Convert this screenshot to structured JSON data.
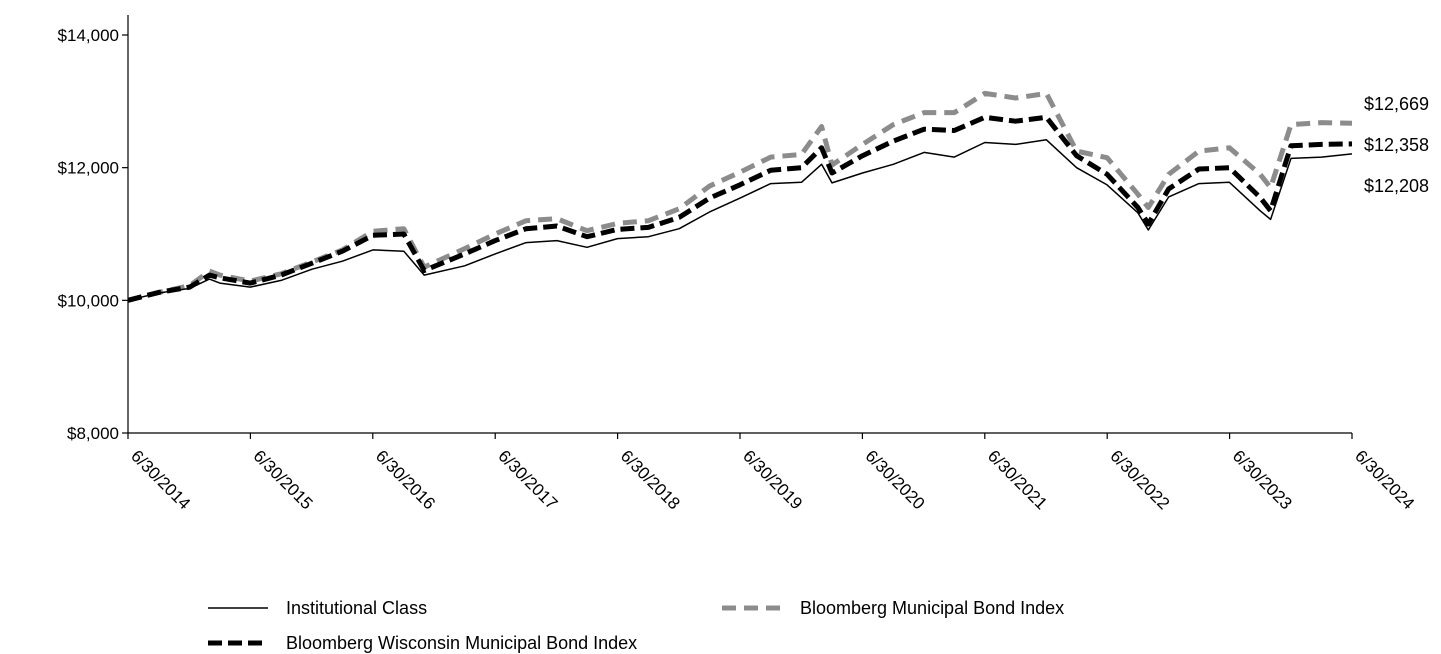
{
  "chart_data": {
    "type": "line",
    "x_ticks": [
      "6/30/2014",
      "6/30/2015",
      "6/30/2016",
      "6/30/2017",
      "6/30/2018",
      "6/30/2019",
      "6/30/2020",
      "6/30/2021",
      "6/30/2022",
      "6/30/2023",
      "6/30/2024"
    ],
    "y_ticks": [
      "$8,000",
      "$10,000",
      "$12,000",
      "$14,000"
    ],
    "ylim": [
      8000,
      14000
    ],
    "x_start": "2014-06-30",
    "x_end": "2024-06-30",
    "series": [
      {
        "name": "Institutional Class",
        "color": "#000000",
        "style": "solid",
        "end_label": "$12,208",
        "points": [
          [
            "2014-06-30",
            10000
          ],
          [
            "2014-09-30",
            10110
          ],
          [
            "2014-12-31",
            10180
          ],
          [
            "2015-02-28",
            10320
          ],
          [
            "2015-03-31",
            10260
          ],
          [
            "2015-06-30",
            10200
          ],
          [
            "2015-09-30",
            10300
          ],
          [
            "2015-12-31",
            10470
          ],
          [
            "2016-03-31",
            10590
          ],
          [
            "2016-06-30",
            10760
          ],
          [
            "2016-09-30",
            10740
          ],
          [
            "2016-11-30",
            10380
          ],
          [
            "2017-03-31",
            10520
          ],
          [
            "2017-06-30",
            10700
          ],
          [
            "2017-09-30",
            10870
          ],
          [
            "2017-12-31",
            10900
          ],
          [
            "2018-03-31",
            10800
          ],
          [
            "2018-06-30",
            10930
          ],
          [
            "2018-09-30",
            10960
          ],
          [
            "2018-12-31",
            11080
          ],
          [
            "2019-03-31",
            11330
          ],
          [
            "2019-06-30",
            11540
          ],
          [
            "2019-09-30",
            11760
          ],
          [
            "2019-12-31",
            11780
          ],
          [
            "2020-02-29",
            12050
          ],
          [
            "2020-03-31",
            11770
          ],
          [
            "2020-06-30",
            11920
          ],
          [
            "2020-09-30",
            12050
          ],
          [
            "2020-12-31",
            12230
          ],
          [
            "2021-03-31",
            12160
          ],
          [
            "2021-06-30",
            12380
          ],
          [
            "2021-09-30",
            12350
          ],
          [
            "2021-12-31",
            12420
          ],
          [
            "2022-03-31",
            12000
          ],
          [
            "2022-06-30",
            11740
          ],
          [
            "2022-09-30",
            11320
          ],
          [
            "2022-10-31",
            11060
          ],
          [
            "2022-12-31",
            11560
          ],
          [
            "2023-03-31",
            11760
          ],
          [
            "2023-06-30",
            11780
          ],
          [
            "2023-09-30",
            11350
          ],
          [
            "2023-10-31",
            11220
          ],
          [
            "2023-12-31",
            12140
          ],
          [
            "2024-03-31",
            12160
          ],
          [
            "2024-06-30",
            12208
          ]
        ]
      },
      {
        "name": "Bloomberg Municipal Bond Index",
        "color": "#8c8c8c",
        "style": "dashed",
        "end_label": "$12,669",
        "points": [
          [
            "2014-06-30",
            10000
          ],
          [
            "2014-09-30",
            10120
          ],
          [
            "2014-12-31",
            10220
          ],
          [
            "2015-02-28",
            10440
          ],
          [
            "2015-03-31",
            10380
          ],
          [
            "2015-06-30",
            10290
          ],
          [
            "2015-09-30",
            10400
          ],
          [
            "2015-12-31",
            10580
          ],
          [
            "2016-03-31",
            10760
          ],
          [
            "2016-06-30",
            11040
          ],
          [
            "2016-09-30",
            11080
          ],
          [
            "2016-11-30",
            10500
          ],
          [
            "2017-03-31",
            10780
          ],
          [
            "2017-06-30",
            11000
          ],
          [
            "2017-09-30",
            11200
          ],
          [
            "2017-12-31",
            11230
          ],
          [
            "2018-03-31",
            11050
          ],
          [
            "2018-06-30",
            11160
          ],
          [
            "2018-09-30",
            11200
          ],
          [
            "2018-12-31",
            11380
          ],
          [
            "2019-03-31",
            11720
          ],
          [
            "2019-06-30",
            11930
          ],
          [
            "2019-09-30",
            12160
          ],
          [
            "2019-12-31",
            12200
          ],
          [
            "2020-02-29",
            12620
          ],
          [
            "2020-03-31",
            12040
          ],
          [
            "2020-06-30",
            12350
          ],
          [
            "2020-09-30",
            12650
          ],
          [
            "2020-12-31",
            12830
          ],
          [
            "2021-03-31",
            12830
          ],
          [
            "2021-06-30",
            13120
          ],
          [
            "2021-09-30",
            13050
          ],
          [
            "2021-12-31",
            13120
          ],
          [
            "2022-03-31",
            12250
          ],
          [
            "2022-06-30",
            12150
          ],
          [
            "2022-09-30",
            11600
          ],
          [
            "2022-10-31",
            11400
          ],
          [
            "2022-12-31",
            11900
          ],
          [
            "2023-03-31",
            12250
          ],
          [
            "2023-06-30",
            12300
          ],
          [
            "2023-09-30",
            11900
          ],
          [
            "2023-10-31",
            11700
          ],
          [
            "2023-12-31",
            12650
          ],
          [
            "2024-03-31",
            12680
          ],
          [
            "2024-06-30",
            12669
          ]
        ]
      },
      {
        "name": "Bloomberg Wisconsin Municipal Bond Index",
        "color": "#000000",
        "style": "dashed-bold",
        "end_label": "$12,358",
        "points": [
          [
            "2014-06-30",
            10000
          ],
          [
            "2014-09-30",
            10120
          ],
          [
            "2014-12-31",
            10200
          ],
          [
            "2015-02-28",
            10380
          ],
          [
            "2015-03-31",
            10340
          ],
          [
            "2015-06-30",
            10260
          ],
          [
            "2015-09-30",
            10380
          ],
          [
            "2015-12-31",
            10560
          ],
          [
            "2016-03-31",
            10740
          ],
          [
            "2016-06-30",
            10980
          ],
          [
            "2016-09-30",
            11000
          ],
          [
            "2016-11-30",
            10450
          ],
          [
            "2017-03-31",
            10700
          ],
          [
            "2017-06-30",
            10900
          ],
          [
            "2017-09-30",
            11080
          ],
          [
            "2017-12-31",
            11120
          ],
          [
            "2018-03-31",
            10960
          ],
          [
            "2018-06-30",
            11070
          ],
          [
            "2018-09-30",
            11100
          ],
          [
            "2018-12-31",
            11250
          ],
          [
            "2019-03-31",
            11540
          ],
          [
            "2019-06-30",
            11740
          ],
          [
            "2019-09-30",
            11960
          ],
          [
            "2019-12-31",
            12000
          ],
          [
            "2020-02-29",
            12300
          ],
          [
            "2020-03-31",
            11920
          ],
          [
            "2020-06-30",
            12180
          ],
          [
            "2020-09-30",
            12400
          ],
          [
            "2020-12-31",
            12580
          ],
          [
            "2021-03-31",
            12560
          ],
          [
            "2021-06-30",
            12760
          ],
          [
            "2021-09-30",
            12700
          ],
          [
            "2021-12-31",
            12760
          ],
          [
            "2022-03-31",
            12180
          ],
          [
            "2022-06-30",
            11900
          ],
          [
            "2022-09-30",
            11400
          ],
          [
            "2022-10-31",
            11150
          ],
          [
            "2022-12-31",
            11680
          ],
          [
            "2023-03-31",
            11980
          ],
          [
            "2023-06-30",
            12000
          ],
          [
            "2023-09-30",
            11550
          ],
          [
            "2023-10-31",
            11350
          ],
          [
            "2023-12-31",
            12330
          ],
          [
            "2024-03-31",
            12350
          ],
          [
            "2024-06-30",
            12358
          ]
        ]
      }
    ]
  },
  "legend": [
    {
      "label": "Institutional Class",
      "color": "#000000",
      "style": "solid"
    },
    {
      "label": "Bloomberg Municipal Bond Index",
      "color": "#8c8c8c",
      "style": "dashed"
    },
    {
      "label": "Bloomberg Wisconsin Municipal Bond Index",
      "color": "#000000",
      "style": "dashed-bold"
    }
  ]
}
